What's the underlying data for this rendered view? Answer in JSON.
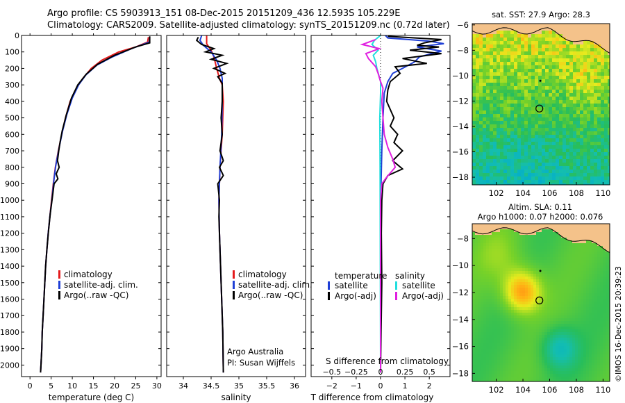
{
  "header": {
    "line1": "Argo profile: CS 5903913_151 08-Dec-2015 20151209_436 12.593S 105.229E",
    "line2": "Climatology: CARS2009. Satellite-adjusted climatology: synTS_20151209.nc (0.72d later)"
  },
  "stamp": "©IMOS 16-Dec-2015 20:39:23",
  "colors": {
    "clim": "#e41a1c",
    "sat": "#1f3fd6",
    "argo": "#000000",
    "cyan": "#22dede",
    "magenta": "#e020e0"
  },
  "chart_data": [
    {
      "type": "line",
      "id": "temperature",
      "xlabel": "temperature (deg C)",
      "xlim": [
        -2,
        31
      ],
      "xticks": [
        0,
        5,
        10,
        15,
        20,
        25,
        30
      ],
      "ylim": [
        2070,
        0
      ],
      "yticks": [
        0,
        100,
        200,
        300,
        400,
        500,
        600,
        700,
        800,
        900,
        1000,
        1100,
        1200,
        1300,
        1400,
        1500,
        1600,
        1700,
        1800,
        1900,
        2000
      ],
      "legend": [
        "climatology",
        "satellite-adj. clim.",
        "Argo(..raw -QC)"
      ],
      "series": [
        {
          "name": "climatology",
          "color": "clim",
          "points": [
            [
              28,
              10
            ],
            [
              27.8,
              40
            ],
            [
              25,
              70
            ],
            [
              21,
              100
            ],
            [
              17,
              150
            ],
            [
              14.5,
              200
            ],
            [
              12.5,
              260
            ],
            [
              11,
              320
            ],
            [
              9.5,
              400
            ],
            [
              8.4,
              500
            ],
            [
              7.5,
              600
            ],
            [
              6.7,
              700
            ],
            [
              6,
              800
            ],
            [
              5.5,
              900
            ],
            [
              5.1,
              1000
            ],
            [
              4.7,
              1100
            ],
            [
              4.3,
              1200
            ],
            [
              4,
              1300
            ],
            [
              3.7,
              1400
            ],
            [
              3.5,
              1500
            ],
            [
              3.3,
              1600
            ],
            [
              3.1,
              1700
            ],
            [
              2.9,
              1800
            ],
            [
              2.8,
              1900
            ],
            [
              2.6,
              2000
            ],
            [
              2.5,
              2045
            ]
          ]
        },
        {
          "name": "satellite-adj. clim.",
          "color": "sat",
          "points": [
            [
              28.3,
              10
            ],
            [
              28.2,
              40
            ],
            [
              24,
              80
            ],
            [
              19.5,
              130
            ],
            [
              15.8,
              180
            ],
            [
              13.2,
              240
            ],
            [
              11.5,
              300
            ],
            [
              10,
              380
            ],
            [
              8.7,
              480
            ],
            [
              7.7,
              580
            ],
            [
              6.9,
              680
            ],
            [
              6.1,
              790
            ],
            [
              5.6,
              890
            ],
            [
              5.2,
              990
            ],
            [
              4.7,
              1100
            ],
            [
              4.3,
              1200
            ],
            [
              4,
              1300
            ],
            [
              3.7,
              1400
            ],
            [
              3.5,
              1500
            ],
            [
              3.3,
              1600
            ],
            [
              3.1,
              1700
            ],
            [
              2.9,
              1800
            ],
            [
              2.8,
              1900
            ],
            [
              2.6,
              2000
            ],
            [
              2.5,
              2045
            ]
          ]
        },
        {
          "name": "Argo(..raw -QC)",
          "color": "argo",
          "points": [
            [
              28.3,
              5
            ],
            [
              28.3,
              45
            ],
            [
              25,
              70
            ],
            [
              20,
              120
            ],
            [
              16,
              175
            ],
            [
              13.3,
              235
            ],
            [
              11.3,
              300
            ],
            [
              9.8,
              380
            ],
            [
              8.6,
              480
            ],
            [
              7.6,
              580
            ],
            [
              7.1,
              650
            ],
            [
              6.8,
              700
            ],
            [
              6.5,
              760
            ],
            [
              6.9,
              800
            ],
            [
              6.2,
              840
            ],
            [
              6.6,
              870
            ],
            [
              5.7,
              900
            ],
            [
              5.3,
              980
            ],
            [
              4.8,
              1080
            ],
            [
              4.4,
              1180
            ],
            [
              4,
              1300
            ],
            [
              3.7,
              1400
            ],
            [
              3.5,
              1500
            ],
            [
              3.3,
              1600
            ],
            [
              3.1,
              1700
            ],
            [
              2.9,
              1800
            ],
            [
              2.8,
              1900
            ],
            [
              2.6,
              2000
            ],
            [
              2.5,
              2045
            ]
          ]
        }
      ]
    },
    {
      "type": "line",
      "id": "salinity",
      "xlabel": "salinity",
      "xlim": [
        33.7,
        36.2
      ],
      "xticks": [
        34,
        34.5,
        35,
        35.5,
        36
      ],
      "xticklabels": [
        "34",
        "34.5",
        "35",
        "35.5",
        "36"
      ],
      "ylim": [
        2070,
        0
      ],
      "legend": [
        "climatology",
        "satellite-adj. clim.",
        "Argo(..raw -QC)"
      ],
      "annotation": [
        "Argo Australia",
        "PI: Susan Wijffels"
      ],
      "series": [
        {
          "name": "climatology",
          "color": "clim",
          "points": [
            [
              34.42,
              0
            ],
            [
              34.42,
              50
            ],
            [
              34.5,
              90
            ],
            [
              34.55,
              130
            ],
            [
              34.6,
              200
            ],
            [
              34.65,
              260
            ],
            [
              34.7,
              300
            ],
            [
              34.72,
              400
            ],
            [
              34.7,
              600
            ],
            [
              34.66,
              800
            ],
            [
              34.64,
              1000
            ],
            [
              34.65,
              1200
            ],
            [
              34.67,
              1400
            ],
            [
              34.69,
              1600
            ],
            [
              34.71,
              1800
            ],
            [
              34.72,
              2045
            ]
          ]
        },
        {
          "name": "satellite-adj. clim.",
          "color": "sat",
          "points": [
            [
              34.33,
              0
            ],
            [
              34.3,
              30
            ],
            [
              34.36,
              60
            ],
            [
              34.5,
              100
            ],
            [
              34.6,
              150
            ],
            [
              34.66,
              200
            ],
            [
              34.7,
              260
            ],
            [
              34.7,
              400
            ],
            [
              34.69,
              600
            ],
            [
              34.66,
              800
            ],
            [
              34.64,
              1000
            ],
            [
              34.65,
              1200
            ],
            [
              34.67,
              1400
            ],
            [
              34.69,
              1600
            ],
            [
              34.71,
              1800
            ],
            [
              34.72,
              2045
            ]
          ]
        },
        {
          "name": "Argo(..raw -QC)",
          "color": "argo",
          "points": [
            [
              34.27,
              10
            ],
            [
              34.24,
              30
            ],
            [
              34.33,
              55
            ],
            [
              34.55,
              80
            ],
            [
              34.4,
              100
            ],
            [
              34.7,
              120
            ],
            [
              34.5,
              145
            ],
            [
              34.78,
              170
            ],
            [
              34.55,
              200
            ],
            [
              34.75,
              230
            ],
            [
              34.62,
              250
            ],
            [
              34.7,
              290
            ],
            [
              34.7,
              400
            ],
            [
              34.68,
              500
            ],
            [
              34.7,
              600
            ],
            [
              34.66,
              700
            ],
            [
              34.72,
              760
            ],
            [
              34.65,
              800
            ],
            [
              34.72,
              850
            ],
            [
              34.62,
              900
            ],
            [
              34.65,
              1000
            ],
            [
              34.64,
              1100
            ],
            [
              34.65,
              1200
            ],
            [
              34.67,
              1400
            ],
            [
              34.69,
              1600
            ],
            [
              34.71,
              1800
            ],
            [
              34.72,
              2045
            ]
          ]
        }
      ]
    },
    {
      "type": "line",
      "id": "differences",
      "xlabel": "T difference from climatology",
      "xlabel_top": "S difference from climatology",
      "xlim": [
        -2.85,
        2.85
      ],
      "xticks": [
        -2,
        -1,
        0,
        1,
        2
      ],
      "top_ticks": [
        -0.5,
        -0.25,
        0,
        0.25,
        0.5
      ],
      "top_ticklabels": [
        "-0.5",
        "-0.25",
        "0",
        "0.25",
        "0.5"
      ],
      "top_tick_scale": 4,
      "ylim": [
        2070,
        0
      ],
      "legend_left": {
        "title": "temperature",
        "items": [
          "satellite",
          "Argo(-adj)"
        ]
      },
      "legend_right": {
        "title": "salinity",
        "items": [
          "satellite",
          "Argo(-adj)"
        ]
      },
      "series": [
        {
          "name": "temperature satellite",
          "color": "sat",
          "points": [
            [
              0.2,
              0
            ],
            [
              0.3,
              15
            ],
            [
              2,
              35
            ],
            [
              2.6,
              50
            ],
            [
              1.5,
              70
            ],
            [
              2.5,
              95
            ],
            [
              1.6,
              130
            ],
            [
              1.4,
              160
            ],
            [
              0.9,
              200
            ],
            [
              0.5,
              230
            ],
            [
              0.3,
              280
            ],
            [
              0.15,
              350
            ],
            [
              0.1,
              500
            ],
            [
              0.05,
              700
            ],
            [
              0.02,
              900
            ],
            [
              0,
              1200
            ],
            [
              0,
              2045
            ]
          ]
        },
        {
          "name": "temperature Argo(-adj)",
          "color": "argo",
          "points": [
            [
              0.3,
              5
            ],
            [
              2.5,
              25
            ],
            [
              1.8,
              45
            ],
            [
              1.5,
              60
            ],
            [
              2.4,
              70
            ],
            [
              1.2,
              90
            ],
            [
              2.5,
              110
            ],
            [
              0.9,
              140
            ],
            [
              1.9,
              170
            ],
            [
              0.6,
              190
            ],
            [
              0.8,
              230
            ],
            [
              0.4,
              280
            ],
            [
              0.3,
              330
            ],
            [
              0.25,
              400
            ],
            [
              0.55,
              500
            ],
            [
              0.4,
              550
            ],
            [
              0.7,
              600
            ],
            [
              0.55,
              650
            ],
            [
              0.9,
              700
            ],
            [
              0.5,
              760
            ],
            [
              0.9,
              810
            ],
            [
              0.3,
              850
            ],
            [
              0.1,
              900
            ],
            [
              0.05,
              1000
            ],
            [
              0.03,
              1200
            ],
            [
              0.05,
              1500
            ],
            [
              0.02,
              1800
            ],
            [
              0,
              2045
            ]
          ]
        },
        {
          "name": "salinity satellite",
          "color": "cyan",
          "points": [
            [
              0,
              0
            ],
            [
              -0.25,
              30
            ],
            [
              -0.35,
              55
            ],
            [
              -0.1,
              90
            ],
            [
              -0.3,
              120
            ],
            [
              -0.2,
              160
            ],
            [
              -0.15,
              200
            ],
            [
              0,
              280
            ],
            [
              0,
              350
            ],
            [
              -0.03,
              500
            ],
            [
              -0.02,
              800
            ],
            [
              0,
              2045
            ]
          ]
        },
        {
          "name": "salinity Argo(-adj)",
          "color": "magenta",
          "points": [
            [
              -0.2,
              25
            ],
            [
              -0.75,
              55
            ],
            [
              -0.05,
              80
            ],
            [
              -0.6,
              110
            ],
            [
              -0.5,
              140
            ],
            [
              -0.2,
              190
            ],
            [
              -0.1,
              230
            ],
            [
              0,
              280
            ],
            [
              0.1,
              320
            ],
            [
              0.05,
              400
            ],
            [
              0.1,
              500
            ],
            [
              0.15,
              600
            ],
            [
              0.3,
              680
            ],
            [
              0.5,
              750
            ],
            [
              0.6,
              800
            ],
            [
              0.25,
              860
            ],
            [
              0.05,
              900
            ],
            [
              0,
              1000
            ],
            [
              0,
              2045
            ]
          ]
        }
      ]
    },
    {
      "type": "heatmap",
      "id": "sst_map",
      "title": "sat. SST: 27.9 Argo: 28.3",
      "xlim": [
        100.2,
        110.5
      ],
      "ylim": [
        -18.6,
        -5.9
      ],
      "xticks": [
        102,
        104,
        106,
        108,
        110
      ],
      "yticks": [
        -6,
        -8,
        -10,
        -12,
        -14,
        -16,
        -18
      ],
      "land_color": "#f4c28a",
      "profile_marker": {
        "lon": 105.23,
        "lat": -12.59
      },
      "prev_marker": {
        "lon": 105.3,
        "lat": -10.4
      }
    },
    {
      "type": "heatmap",
      "id": "sla_map",
      "title_lines": [
        "Altim. SLA: 0.11",
        "Argo h1000: 0.07 h2000: 0.076"
      ],
      "xlim": [
        100.2,
        110.5
      ],
      "ylim": [
        -18.6,
        -6.9
      ],
      "xticks": [
        102,
        104,
        106,
        108,
        110
      ],
      "yticks": [
        -8,
        -10,
        -12,
        -14,
        -16,
        -18
      ],
      "land_color": "#f4c28a",
      "profile_marker": {
        "lon": 105.23,
        "lat": -12.59
      },
      "prev_marker": {
        "lon": 105.3,
        "lat": -10.4
      }
    }
  ]
}
